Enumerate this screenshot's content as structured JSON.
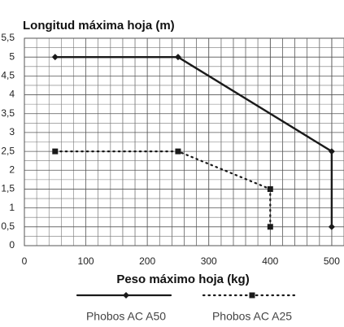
{
  "chart_data": {
    "type": "line",
    "title": "Longitud máxima hoja (m)",
    "x_label": "Peso máximo hoja (kg)",
    "xlim": [
      0,
      520
    ],
    "xticks": [
      0,
      100,
      200,
      300,
      400,
      500
    ],
    "ylim": [
      0,
      5.5
    ],
    "yticks": [
      0,
      {
        "value": 0.5,
        "label": "0,5"
      },
      1,
      {
        "value": 1.5,
        "label": "1,5"
      },
      2,
      {
        "value": 2.5,
        "label": "2,5"
      },
      3,
      {
        "value": 3.5,
        "label": "3,5"
      },
      4,
      {
        "value": 4.5,
        "label": "4,5"
      },
      5,
      {
        "value": 5.5,
        "label": "5,5"
      }
    ],
    "grid": true,
    "legend": "bottom",
    "series": [
      {
        "name": "Phobos AC A50",
        "color": "#1a1a1a",
        "marker": "diamond",
        "dash": "solid",
        "x": [
          50,
          250,
          500,
          500
        ],
        "values": [
          5,
          5,
          2.5,
          0.5
        ]
      },
      {
        "name": "Phobos AC A25",
        "color": "#1a1a1a",
        "marker": "square",
        "dash": "dotted",
        "x": [
          50,
          250,
          400,
          400
        ],
        "values": [
          2.5,
          2.5,
          1.5,
          0.5
        ]
      }
    ]
  }
}
